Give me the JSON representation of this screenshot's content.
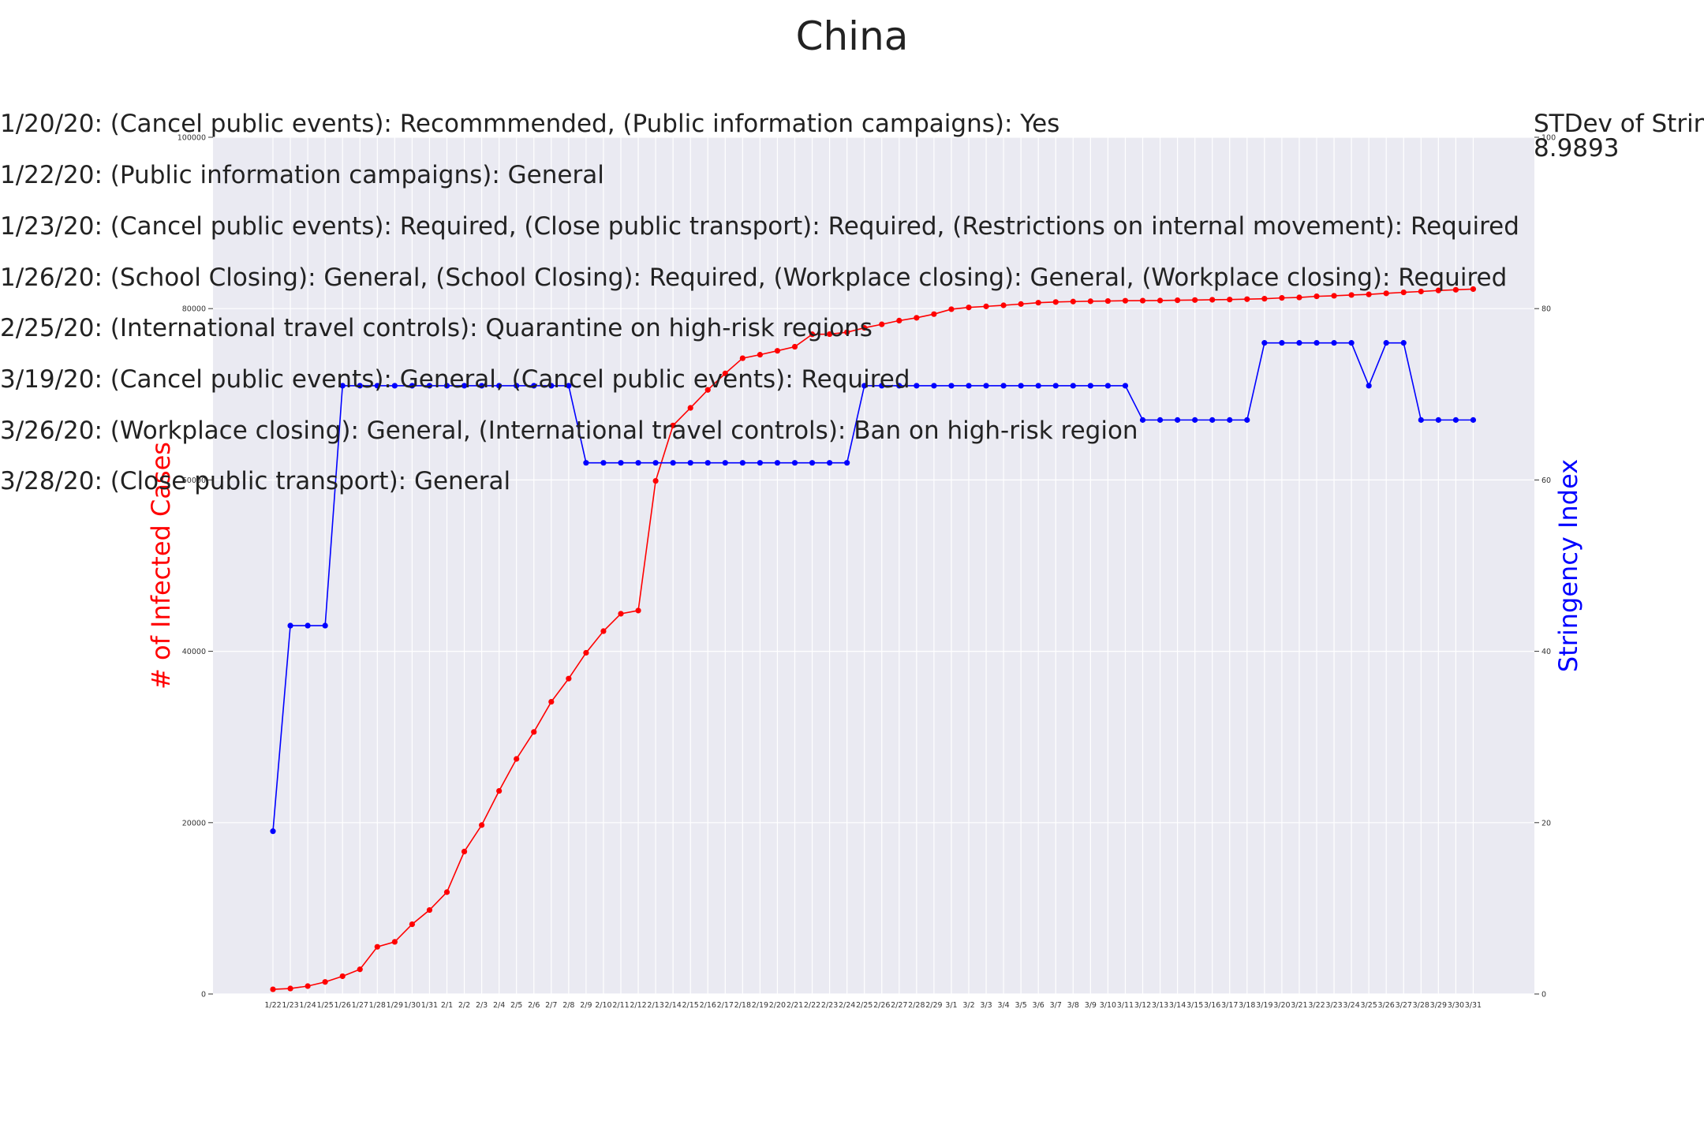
{
  "chart_data": {
    "type": "line",
    "title": "China",
    "ylabel_left": "# of Infected Cases",
    "ylabel_right": "Stringency Index",
    "stdev_label": "STDev of Stringency",
    "stdev_value": "8.9893",
    "ylim_left": [
      0,
      100000
    ],
    "ylim_right": [
      0,
      100
    ],
    "yticks_left": [
      "0",
      "20000",
      "40000",
      "60000",
      "80000",
      "100000"
    ],
    "yticks_right": [
      "0",
      "20",
      "40",
      "60",
      "80",
      "100"
    ],
    "grid": true,
    "background": "#eaeaf2",
    "x": [
      "1/22",
      "1/23",
      "1/24",
      "1/25",
      "1/26",
      "1/27",
      "1/28",
      "1/29",
      "1/30",
      "1/31",
      "2/1",
      "2/2",
      "2/3",
      "2/4",
      "2/5",
      "2/6",
      "2/7",
      "2/8",
      "2/9",
      "2/10",
      "2/11",
      "2/12",
      "2/13",
      "2/14",
      "2/15",
      "2/16",
      "2/17",
      "2/18",
      "2/19",
      "2/20",
      "2/21",
      "2/22",
      "2/23",
      "2/24",
      "2/25",
      "2/26",
      "2/27",
      "2/28",
      "2/29",
      "3/1",
      "3/2",
      "3/3",
      "3/4",
      "3/5",
      "3/6",
      "3/7",
      "3/8",
      "3/9",
      "3/10",
      "3/11",
      "3/12",
      "3/13",
      "3/14",
      "3/15",
      "3/16",
      "3/17",
      "3/18",
      "3/19",
      "3/20",
      "3/21",
      "3/22",
      "3/23",
      "3/24",
      "3/25",
      "3/26",
      "3/27",
      "3/28",
      "3/29",
      "3/30",
      "3/31"
    ],
    "series": [
      {
        "name": "# of Infected Cases",
        "axis": "left",
        "color": "#ff0000",
        "values": [
          548,
          643,
          920,
          1406,
          2075,
          2877,
          5509,
          6087,
          8141,
          9802,
          11891,
          16630,
          19716,
          23707,
          27440,
          30587,
          34110,
          36814,
          39829,
          42354,
          44386,
          44759,
          59895,
          66358,
          68413,
          70513,
          72434,
          74211,
          74619,
          75077,
          75550,
          77001,
          77022,
          77241,
          77754,
          78166,
          78600,
          78928,
          79356,
          79932,
          80136,
          80261,
          80386,
          80537,
          80690,
          80770,
          80823,
          80860,
          80887,
          80921,
          80932,
          80945,
          80977,
          81003,
          81033,
          81058,
          81102,
          81156,
          81250,
          81305,
          81435,
          81498,
          81591,
          81661,
          81782,
          81897,
          81999,
          82122,
          82198,
          82279
        ]
      },
      {
        "name": "Stringency Index",
        "axis": "right",
        "color": "#0000ff",
        "values": [
          19,
          43,
          43,
          43,
          71,
          71,
          71,
          71,
          71,
          71,
          71,
          71,
          71,
          71,
          71,
          71,
          71,
          71,
          62,
          62,
          62,
          62,
          62,
          62,
          62,
          62,
          62,
          62,
          62,
          62,
          62,
          62,
          62,
          62,
          71,
          71,
          71,
          71,
          71,
          71,
          71,
          71,
          71,
          71,
          71,
          71,
          71,
          71,
          71,
          71,
          67,
          67,
          67,
          67,
          67,
          67,
          67,
          76,
          76,
          76,
          76,
          76,
          76,
          71,
          76,
          76,
          67,
          67,
          67,
          67
        ]
      }
    ],
    "annotations": [
      "1/20/20: (Cancel public events): Recommmended, (Public information campaigns): Yes",
      "1/22/20: (Public information campaigns): General",
      "1/23/20: (Cancel public events): Required, (Close public transport): Required, (Restrictions on internal movement): Required",
      "1/26/20: (School Closing): General, (School Closing): Required, (Workplace closing): General, (Workplace closing): Required",
      "2/25/20: (International travel controls): Quarantine on high-risk regions",
      "3/19/20: (Cancel public events): General, (Cancel public events): Required",
      "3/26/20: (Workplace closing): General, (International travel controls): Ban on high-risk region",
      "3/28/20: (Close public transport): General"
    ]
  }
}
